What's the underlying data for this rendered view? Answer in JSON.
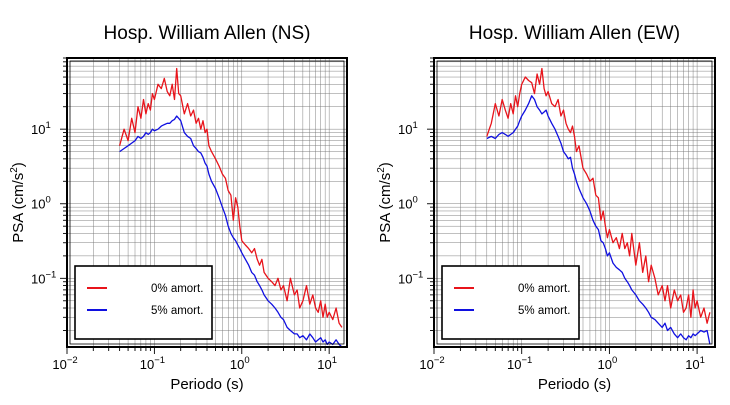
{
  "charts": [
    {
      "title": "Hosp. William Allen (NS)",
      "xlabel": "Periodo (s)",
      "ylabel": "PSA (cm/s",
      "ylabel_sup": "2",
      "ylabel_end": ")",
      "legend": [
        {
          "label": "0% amort.",
          "color": "#e8141b"
        },
        {
          "label": "5% amort.",
          "color": "#1010e0"
        }
      ]
    },
    {
      "title": "Hosp. William Allen (EW)",
      "xlabel": "Periodo (s)",
      "ylabel": "PSA (cm/s",
      "ylabel_sup": "2",
      "ylabel_end": ")",
      "legend": [
        {
          "label": "0% amort.",
          "color": "#e8141b"
        },
        {
          "label": "5% amort.",
          "color": "#1010e0"
        }
      ]
    }
  ],
  "tick_labels": {
    "x": [
      "10",
      "10",
      "10",
      "10"
    ],
    "x_exp": [
      "−2",
      "−1",
      "0",
      "1"
    ],
    "y": [
      "10",
      "10",
      "10"
    ],
    "y_exp": [
      "1",
      "0",
      "−1"
    ]
  },
  "chart_data": [
    {
      "type": "line",
      "title": "Hosp. William Allen (NS)",
      "xlabel": "Periodo (s)",
      "ylabel": "PSA (cm/s²)",
      "xscale": "log",
      "yscale": "log",
      "xlim": [
        0.01,
        16
      ],
      "ylim": [
        0.012,
        90
      ],
      "grid": true,
      "legend_position": "bottom-left",
      "series": [
        {
          "name": "0% amort.",
          "color": "#e8141b",
          "x": [
            0.04,
            0.045,
            0.05,
            0.055,
            0.06,
            0.065,
            0.07,
            0.075,
            0.08,
            0.085,
            0.09,
            0.095,
            0.1,
            0.11,
            0.12,
            0.13,
            0.14,
            0.15,
            0.16,
            0.17,
            0.18,
            0.19,
            0.2,
            0.22,
            0.24,
            0.26,
            0.28,
            0.3,
            0.32,
            0.34,
            0.36,
            0.38,
            0.4,
            0.42,
            0.45,
            0.5,
            0.55,
            0.6,
            0.65,
            0.7,
            0.75,
            0.8,
            0.85,
            0.9,
            0.95,
            1,
            1.1,
            1.2,
            1.3,
            1.4,
            1.5,
            1.6,
            1.7,
            1.8,
            2,
            2.2,
            2.4,
            2.6,
            2.8,
            3,
            3.3,
            3.6,
            4,
            4.3,
            4.6,
            5,
            5.5,
            6,
            6.5,
            7,
            7.5,
            8,
            8.5,
            9,
            9.5,
            10,
            11,
            12,
            13,
            14
          ],
          "y": [
            6,
            10,
            7,
            14,
            9,
            20,
            14,
            25,
            16,
            22,
            18,
            30,
            25,
            40,
            35,
            48,
            32,
            28,
            40,
            25,
            65,
            30,
            28,
            16,
            22,
            15,
            18,
            12,
            14,
            10,
            13,
            9,
            10,
            6,
            5,
            4,
            3.2,
            2.5,
            2.2,
            1.5,
            1.3,
            0.6,
            1.2,
            0.9,
            0.5,
            0.32,
            0.28,
            0.25,
            0.22,
            0.25,
            0.18,
            0.15,
            0.18,
            0.12,
            0.1,
            0.09,
            0.08,
            0.1,
            0.07,
            0.08,
            0.05,
            0.1,
            0.06,
            0.07,
            0.04,
            0.05,
            0.08,
            0.045,
            0.06,
            0.04,
            0.035,
            0.05,
            0.03,
            0.045,
            0.03,
            0.035,
            0.028,
            0.04,
            0.025,
            0.022
          ]
        },
        {
          "name": "5% amort.",
          "color": "#1010e0",
          "x": [
            0.04,
            0.045,
            0.05,
            0.055,
            0.06,
            0.065,
            0.07,
            0.075,
            0.08,
            0.085,
            0.09,
            0.095,
            0.1,
            0.11,
            0.12,
            0.13,
            0.14,
            0.15,
            0.16,
            0.17,
            0.18,
            0.19,
            0.2,
            0.22,
            0.24,
            0.26,
            0.28,
            0.3,
            0.32,
            0.34,
            0.36,
            0.38,
            0.4,
            0.42,
            0.45,
            0.5,
            0.55,
            0.6,
            0.65,
            0.7,
            0.75,
            0.8,
            0.85,
            0.9,
            0.95,
            1,
            1.1,
            1.2,
            1.3,
            1.4,
            1.5,
            1.6,
            1.7,
            1.8,
            2,
            2.2,
            2.4,
            2.6,
            2.8,
            3,
            3.3,
            3.6,
            4,
            4.3,
            4.6,
            5,
            5.5,
            6,
            6.5,
            7,
            7.5,
            8,
            8.5,
            9,
            9.5,
            10,
            11,
            12,
            13,
            14
          ],
          "y": [
            5,
            5.5,
            6,
            6.5,
            7,
            8,
            7.5,
            8,
            9,
            8.5,
            9,
            10,
            9.5,
            10,
            11,
            11.5,
            12,
            12,
            13,
            13.5,
            15,
            14,
            13,
            9,
            8,
            7.5,
            6,
            5.5,
            5,
            4.8,
            4.2,
            3.5,
            3.2,
            2.5,
            2,
            1.6,
            1.2,
            0.9,
            0.7,
            0.5,
            0.4,
            0.35,
            0.32,
            0.28,
            0.25,
            0.22,
            0.18,
            0.15,
            0.12,
            0.11,
            0.09,
            0.08,
            0.07,
            0.06,
            0.05,
            0.045,
            0.04,
            0.035,
            0.03,
            0.028,
            0.022,
            0.02,
            0.018,
            0.018,
            0.016,
            0.017,
            0.015,
            0.018,
            0.016,
            0.014,
            0.015,
            0.016,
            0.014,
            0.015,
            0.013,
            0.014,
            0.013,
            0.015,
            0.013,
            0.012
          ]
        }
      ]
    },
    {
      "type": "line",
      "title": "Hosp. William Allen (EW)",
      "xlabel": "Periodo (s)",
      "ylabel": "PSA (cm/s²)",
      "xscale": "log",
      "yscale": "log",
      "xlim": [
        0.01,
        16
      ],
      "ylim": [
        0.012,
        90
      ],
      "grid": true,
      "legend_position": "bottom-left",
      "series": [
        {
          "name": "0% amort.",
          "color": "#e8141b",
          "x": [
            0.04,
            0.045,
            0.05,
            0.055,
            0.06,
            0.065,
            0.07,
            0.075,
            0.08,
            0.085,
            0.09,
            0.095,
            0.1,
            0.11,
            0.12,
            0.13,
            0.14,
            0.15,
            0.16,
            0.17,
            0.18,
            0.19,
            0.2,
            0.22,
            0.24,
            0.26,
            0.28,
            0.3,
            0.32,
            0.34,
            0.36,
            0.38,
            0.4,
            0.42,
            0.45,
            0.5,
            0.55,
            0.6,
            0.65,
            0.7,
            0.75,
            0.8,
            0.85,
            0.9,
            0.95,
            1,
            1.1,
            1.2,
            1.3,
            1.4,
            1.5,
            1.6,
            1.7,
            1.8,
            2,
            2.2,
            2.4,
            2.6,
            2.8,
            3,
            3.3,
            3.6,
            4,
            4.3,
            4.6,
            5,
            5.5,
            6,
            6.5,
            7,
            7.5,
            8,
            8.5,
            9,
            9.5,
            10,
            11,
            12,
            13,
            14
          ],
          "y": [
            8,
            12,
            22,
            15,
            25,
            18,
            14,
            22,
            16,
            28,
            20,
            30,
            40,
            50,
            45,
            42,
            30,
            55,
            40,
            65,
            35,
            28,
            32,
            22,
            20,
            25,
            15,
            18,
            12,
            10,
            9,
            11,
            8,
            5,
            6,
            3,
            2.5,
            2,
            2.2,
            1.3,
            1.2,
            0.6,
            0.8,
            0.5,
            0.35,
            0.45,
            0.3,
            0.35,
            0.25,
            0.4,
            0.25,
            0.3,
            0.2,
            0.4,
            0.15,
            0.3,
            0.12,
            0.2,
            0.09,
            0.15,
            0.1,
            0.06,
            0.08,
            0.05,
            0.08,
            0.04,
            0.07,
            0.05,
            0.06,
            0.035,
            0.04,
            0.06,
            0.03,
            0.07,
            0.04,
            0.05,
            0.03,
            0.04,
            0.025,
            0.035
          ]
        },
        {
          "name": "5% amort.",
          "color": "#1010e0",
          "x": [
            0.04,
            0.045,
            0.05,
            0.055,
            0.06,
            0.065,
            0.07,
            0.075,
            0.08,
            0.085,
            0.09,
            0.095,
            0.1,
            0.11,
            0.12,
            0.13,
            0.14,
            0.15,
            0.16,
            0.17,
            0.18,
            0.19,
            0.2,
            0.22,
            0.24,
            0.26,
            0.28,
            0.3,
            0.32,
            0.34,
            0.36,
            0.38,
            0.4,
            0.42,
            0.45,
            0.5,
            0.55,
            0.6,
            0.65,
            0.7,
            0.75,
            0.8,
            0.85,
            0.9,
            0.95,
            1,
            1.1,
            1.2,
            1.3,
            1.4,
            1.5,
            1.6,
            1.7,
            1.8,
            2,
            2.2,
            2.4,
            2.6,
            2.8,
            3,
            3.3,
            3.6,
            4,
            4.3,
            4.6,
            5,
            5.5,
            6,
            6.5,
            7,
            7.5,
            8,
            8.5,
            9,
            9.5,
            10,
            11,
            12,
            13,
            14
          ],
          "y": [
            7.5,
            8,
            7.5,
            8.5,
            9,
            8.5,
            8,
            8.5,
            9,
            10,
            11,
            13,
            15,
            18,
            22,
            28,
            25,
            20,
            18,
            16,
            17,
            18,
            15,
            12,
            10,
            8,
            6.5,
            5,
            4.5,
            4,
            4.2,
            3,
            2.5,
            2,
            1.6,
            1.2,
            1,
            0.8,
            0.6,
            0.5,
            0.45,
            0.32,
            0.3,
            0.25,
            0.2,
            0.22,
            0.16,
            0.14,
            0.13,
            0.12,
            0.1,
            0.09,
            0.08,
            0.07,
            0.06,
            0.05,
            0.045,
            0.04,
            0.035,
            0.03,
            0.028,
            0.025,
            0.022,
            0.025,
            0.02,
            0.022,
            0.018,
            0.016,
            0.018,
            0.016,
            0.015,
            0.017,
            0.016,
            0.018,
            0.017,
            0.018,
            0.02,
            0.019,
            0.02,
            0.013
          ]
        }
      ]
    }
  ]
}
